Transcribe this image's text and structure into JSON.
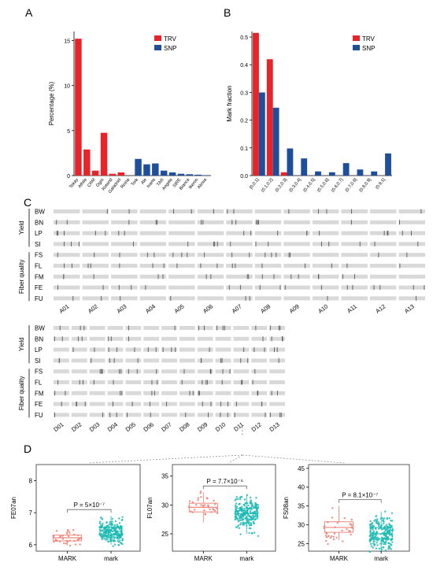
{
  "panel_labels": {
    "a": "A",
    "b": "B",
    "c": "C",
    "d": "D"
  },
  "colors": {
    "trv": "#e8242b",
    "snp": "#1f4e9a",
    "mark_upper": "#f07a6e",
    "mark_lower": "#1bbab3",
    "track": "#d9d9d9",
    "tick": "#555555"
  },
  "chart_data": [
    {
      "id": "A",
      "type": "bar",
      "ylabel": "Percentage (%)",
      "ylim": [
        0,
        16
      ],
      "yticks": [
        0,
        5,
        10,
        15
      ],
      "legend": {
        "placement": "top-right",
        "entries": [
          {
            "name": "TRV",
            "color": "#e8242b"
          },
          {
            "name": "SNP",
            "color": "#1f4e9a"
          }
        ]
      },
      "categories": [
        "Tekay",
        "Athila",
        "CRM",
        "Ogre",
        "Retand",
        "Galadriel",
        "Reina",
        "Tork",
        "Ale",
        "Ivana",
        "TAR",
        "Angela",
        "SIRE",
        "Bianca",
        "Ikeros",
        "Alesia"
      ],
      "series": [
        {
          "name": "TRV",
          "values": [
            15.2,
            2.9,
            0.55,
            4.75,
            0.2,
            0.35,
            null,
            null,
            null,
            null,
            null,
            null,
            null,
            null,
            null,
            null
          ]
        },
        {
          "name": "SNP",
          "values": [
            null,
            null,
            null,
            null,
            null,
            null,
            null,
            1.85,
            1.25,
            1.35,
            0.55,
            0.35,
            0.2,
            0.15,
            0.1,
            0.05
          ]
        }
      ]
    },
    {
      "id": "B",
      "type": "bar",
      "ylabel": "Mark fraction",
      "ylim": [
        0,
        0.52
      ],
      "yticks": [
        0.0,
        0.1,
        0.2,
        0.3,
        0.4,
        0.5
      ],
      "legend": {
        "placement": "top-right",
        "entries": [
          {
            "name": "TRV",
            "color": "#e8242b"
          },
          {
            "name": "SNP",
            "color": "#1f4e9a"
          }
        ]
      },
      "categories": [
        "[0,0.1]",
        "(0.1,0.2]",
        "(0.2,0.3]",
        "(0.3,0.4]",
        "(0.4,0.5]",
        "(0.5,0.6]",
        "(0.6,0.7]",
        "(0.7,0.8]",
        "(0.8,0.9]",
        "(0.9,1]"
      ],
      "series": [
        {
          "name": "TRV",
          "values": [
            0.515,
            0.42,
            0.012,
            0.0,
            0.0,
            0.0,
            0.0,
            0.0,
            0.0,
            0.0
          ]
        },
        {
          "name": "SNP",
          "values": [
            0.3,
            0.245,
            0.098,
            0.062,
            0.015,
            0.012,
            0.045,
            0.022,
            0.015,
            0.08
          ]
        }
      ]
    },
    {
      "id": "C",
      "type": "heatmap",
      "trait_groups": [
        {
          "name": "Yield",
          "traits": [
            "BW",
            "BN",
            "LP",
            "SI"
          ]
        },
        {
          "name": "Fiber quality",
          "traits": [
            "FS",
            "FL",
            "FM",
            "FE",
            "FU"
          ]
        }
      ],
      "genomes": [
        {
          "name": "A",
          "chromosomes": [
            "A01",
            "A02",
            "A03",
            "A04",
            "A05",
            "A06",
            "A07",
            "A08",
            "A09",
            "A10",
            "A11",
            "A12",
            "A13"
          ]
        },
        {
          "name": "D",
          "chromosomes": [
            "D01",
            "D02",
            "D03",
            "D04",
            "D05",
            "D06",
            "D07",
            "D08",
            "D09",
            "D10",
            "D11",
            "D12",
            "D13"
          ]
        }
      ],
      "highlight_chromosome": "D11"
    },
    {
      "id": "D1",
      "type": "scatter",
      "ylabel": "FE07an",
      "ylim": [
        5.8,
        8.5
      ],
      "yticks": [
        6,
        7,
        8
      ],
      "categories": [
        "MARK",
        "mark"
      ],
      "annotation": "P = 5×10⁻⁷",
      "boxes": [
        {
          "category": "MARK",
          "q1": 6.12,
          "median": 6.22,
          "q3": 6.3,
          "whisker_low": 5.98,
          "whisker_high": 6.45
        },
        {
          "category": "mark",
          "q1": 6.3,
          "median": 6.42,
          "q3": 6.55,
          "whisker_low": 6.0,
          "whisker_high": 6.9
        }
      ]
    },
    {
      "id": "D2",
      "type": "scatter",
      "ylabel": "FL07an",
      "ylim": [
        22,
        37
      ],
      "yticks": [
        25,
        30,
        35
      ],
      "categories": [
        "MARK",
        "mark"
      ],
      "annotation": "P = 7.7×10⁻⁶",
      "boxes": [
        {
          "category": "MARK",
          "q1": 28.8,
          "median": 29.6,
          "q3": 30.3,
          "whisker_low": 27.0,
          "whisker_high": 32.2
        },
        {
          "category": "mark",
          "q1": 27.6,
          "median": 28.5,
          "q3": 29.4,
          "whisker_low": 25.0,
          "whisker_high": 31.8
        }
      ]
    },
    {
      "id": "D3",
      "type": "scatter",
      "ylabel": "FS08an",
      "ylim": [
        23,
        46
      ],
      "yticks": [
        25,
        30,
        35,
        40,
        45
      ],
      "categories": [
        "MARK",
        "mark"
      ],
      "annotation": "P = 8.1×10⁻⁷",
      "boxes": [
        {
          "category": "MARK",
          "q1": 28.0,
          "median": 29.3,
          "q3": 30.8,
          "whisker_low": 26.0,
          "whisker_high": 35.0
        },
        {
          "category": "mark",
          "q1": 26.2,
          "median": 27.6,
          "q3": 29.3,
          "whisker_low": 24.0,
          "whisker_high": 33.5
        }
      ]
    }
  ]
}
